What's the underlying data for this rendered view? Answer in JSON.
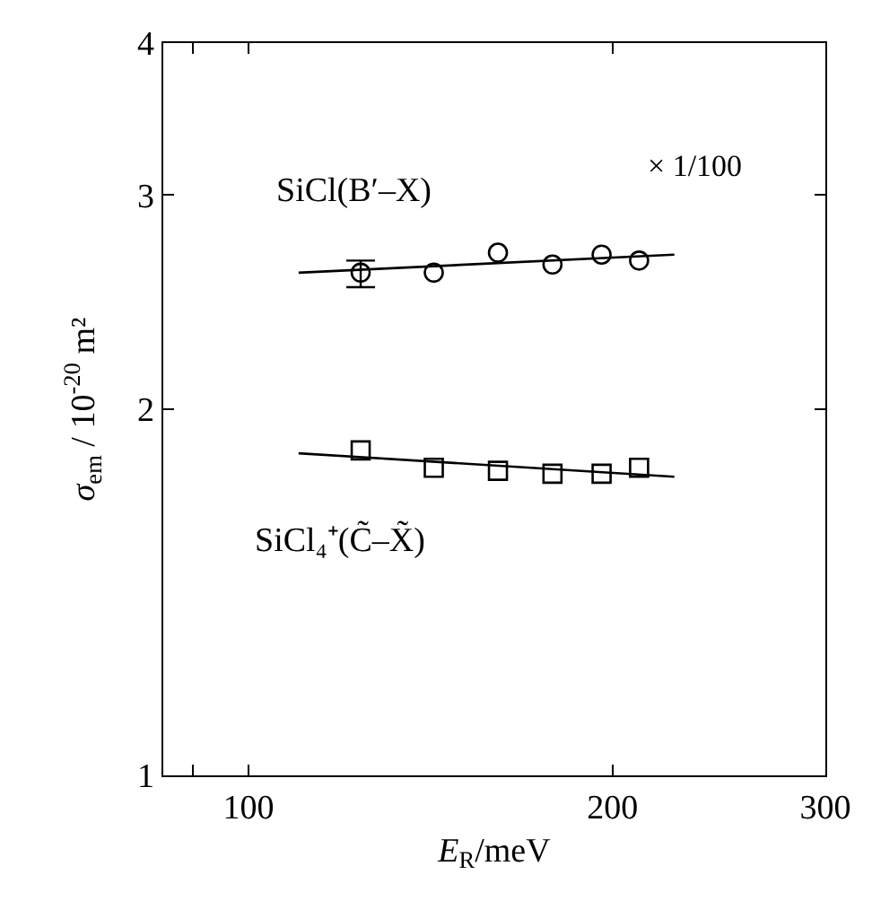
{
  "chart_data": {
    "type": "scatter",
    "xlabel": "E$_{R}$/meV",
    "ylabel": "σ$_{em}$ / 10$^{-20}$ m²",
    "log": "xy",
    "xlim": [
      85,
      300
    ],
    "xticks": [
      {
        "value": 90,
        "label": null
      },
      100,
      200,
      300
    ],
    "ylim": [
      1,
      4
    ],
    "yticks": [
      1,
      2,
      3,
      4
    ],
    "legend": false,
    "series": [
      {
        "name": "SiCl(B′–X)",
        "marker": "circle",
        "color": "#000000",
        "x": [
          123.8,
          142.3,
          160.8,
          178.4,
          195.9,
          210.4
        ],
        "values": [
          2.59,
          2.59,
          2.69,
          2.63,
          2.68,
          2.65
        ],
        "errors": [
          [
            2.52,
            2.65
          ],
          null,
          null,
          null,
          null,
          null
        ]
      },
      {
        "type": "line",
        "marker": "none",
        "color": "#000000",
        "x": [
          110,
          225
        ],
        "values": [
          2.59,
          2.68
        ]
      },
      {
        "name": "SiCl₄⁺(C̃–X̃)",
        "marker": "square",
        "color": "#000000",
        "x": [
          123.8,
          142.3,
          160.8,
          178.4,
          195.9,
          210.4
        ],
        "values": [
          1.85,
          1.79,
          1.78,
          1.77,
          1.77,
          1.79
        ]
      },
      {
        "type": "line",
        "marker": "none",
        "color": "#000000",
        "x": [
          110,
          225
        ],
        "values": [
          1.84,
          1.76
        ]
      }
    ],
    "annotations": [
      "× 1/100"
    ]
  }
}
